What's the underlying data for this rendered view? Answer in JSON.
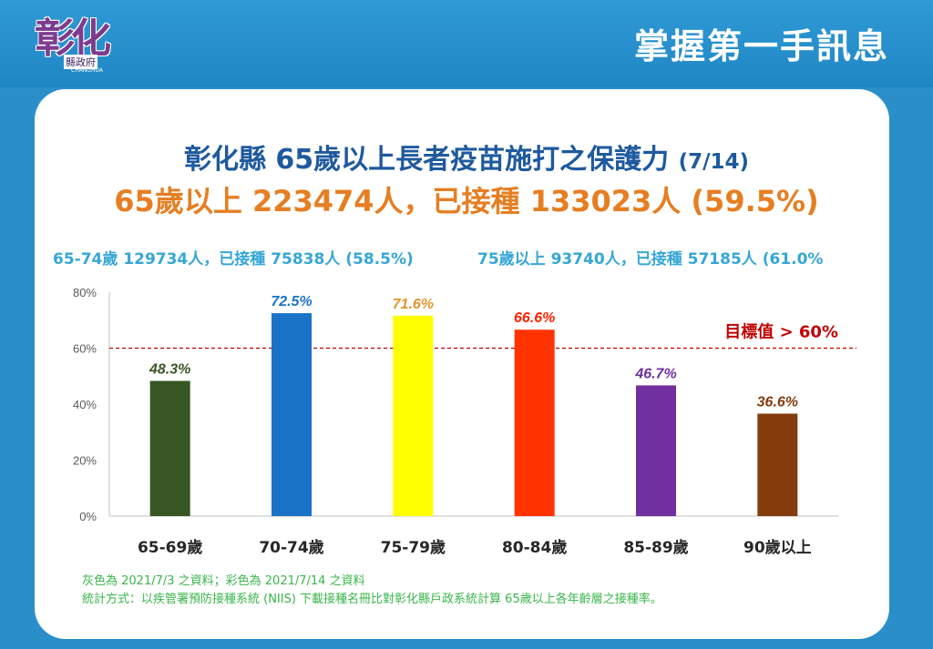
{
  "header": {
    "logo": "彰化",
    "logo_sub": "縣政府",
    "logo_en": "CHANGHUA",
    "title": "掌握第一手訊息"
  },
  "headline": {
    "line1_main": "彰化縣 65歲以上長者疫苗施打之保護力",
    "line1_date": "(7/14)",
    "line2": "65歲以上 223474人，已接種 133023人 (59.5%)"
  },
  "subheads": {
    "left": "65-74歲 129734人，已接種 75838人 (58.5%)",
    "right": "75歲以上 93740人，已接種 57185人 (61.0%"
  },
  "chart_data": {
    "type": "bar",
    "categories": [
      "65-69歲",
      "70-74歲",
      "75-79歲",
      "80-84歲",
      "85-89歲",
      "90歲以上"
    ],
    "values": [
      48.3,
      72.5,
      71.6,
      66.6,
      46.7,
      36.6
    ],
    "value_labels": [
      "48.3%",
      "72.5%",
      "71.6%",
      "66.6%",
      "46.7%",
      "36.6%"
    ],
    "colors": [
      "#375623",
      "#1a73c6",
      "#ffff00",
      "#ff3300",
      "#7030a0",
      "#843c0c"
    ],
    "label_colors": [
      "#375623",
      "#1a73c6",
      "#e0952c",
      "#ff2200",
      "#7030a0",
      "#843c0c"
    ],
    "ylim": [
      0,
      80
    ],
    "yticks": [
      0,
      20,
      40,
      60,
      80
    ],
    "ytick_labels": [
      "0%",
      "20%",
      "40%",
      "60%",
      "80%"
    ],
    "target": {
      "value": 60,
      "label": "目標值 > 60%",
      "color": "#c00000"
    }
  },
  "notes": {
    "line1": "灰色為 2021/7/3 之資料；彩色為 2021/7/14 之資料",
    "line2": "統計方式：以疾管署預防接種系統 (NIIS) 下載接種名冊比對彰化縣戶政系統計算 65歲以上各年齡層之接種率。"
  }
}
